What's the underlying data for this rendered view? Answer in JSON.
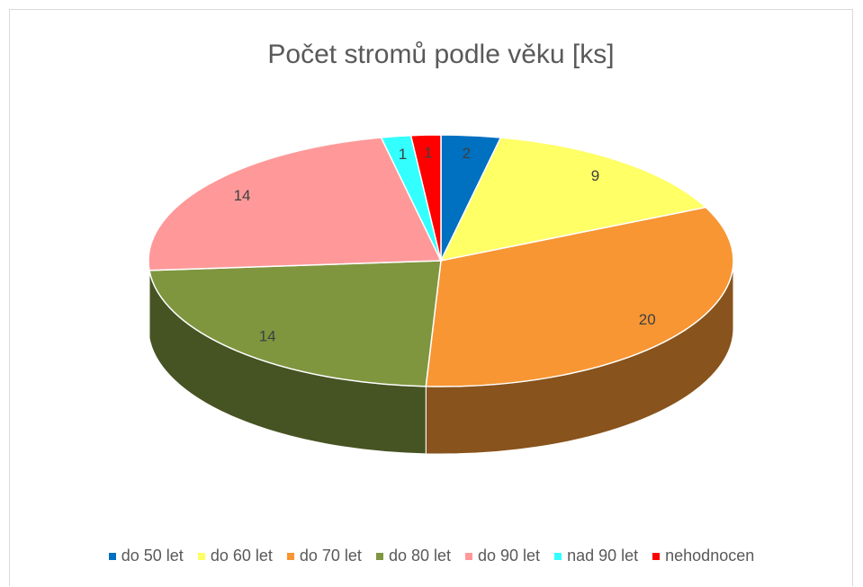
{
  "chart_data": {
    "type": "pie",
    "title": "Počet stromů podle věku [ks]",
    "categories": [
      "do 50 let",
      "do 60 let",
      "do 70 let",
      "do 80 let",
      "do 90 let",
      "nad 90 let",
      "nehodnocen"
    ],
    "values": [
      2,
      9,
      20,
      14,
      14,
      1,
      1
    ],
    "colors": [
      "#0070c0",
      "#ffff66",
      "#f79633",
      "#7f963f",
      "#ff9999",
      "#33ffff",
      "#ff0000"
    ],
    "legend": "bottom"
  }
}
